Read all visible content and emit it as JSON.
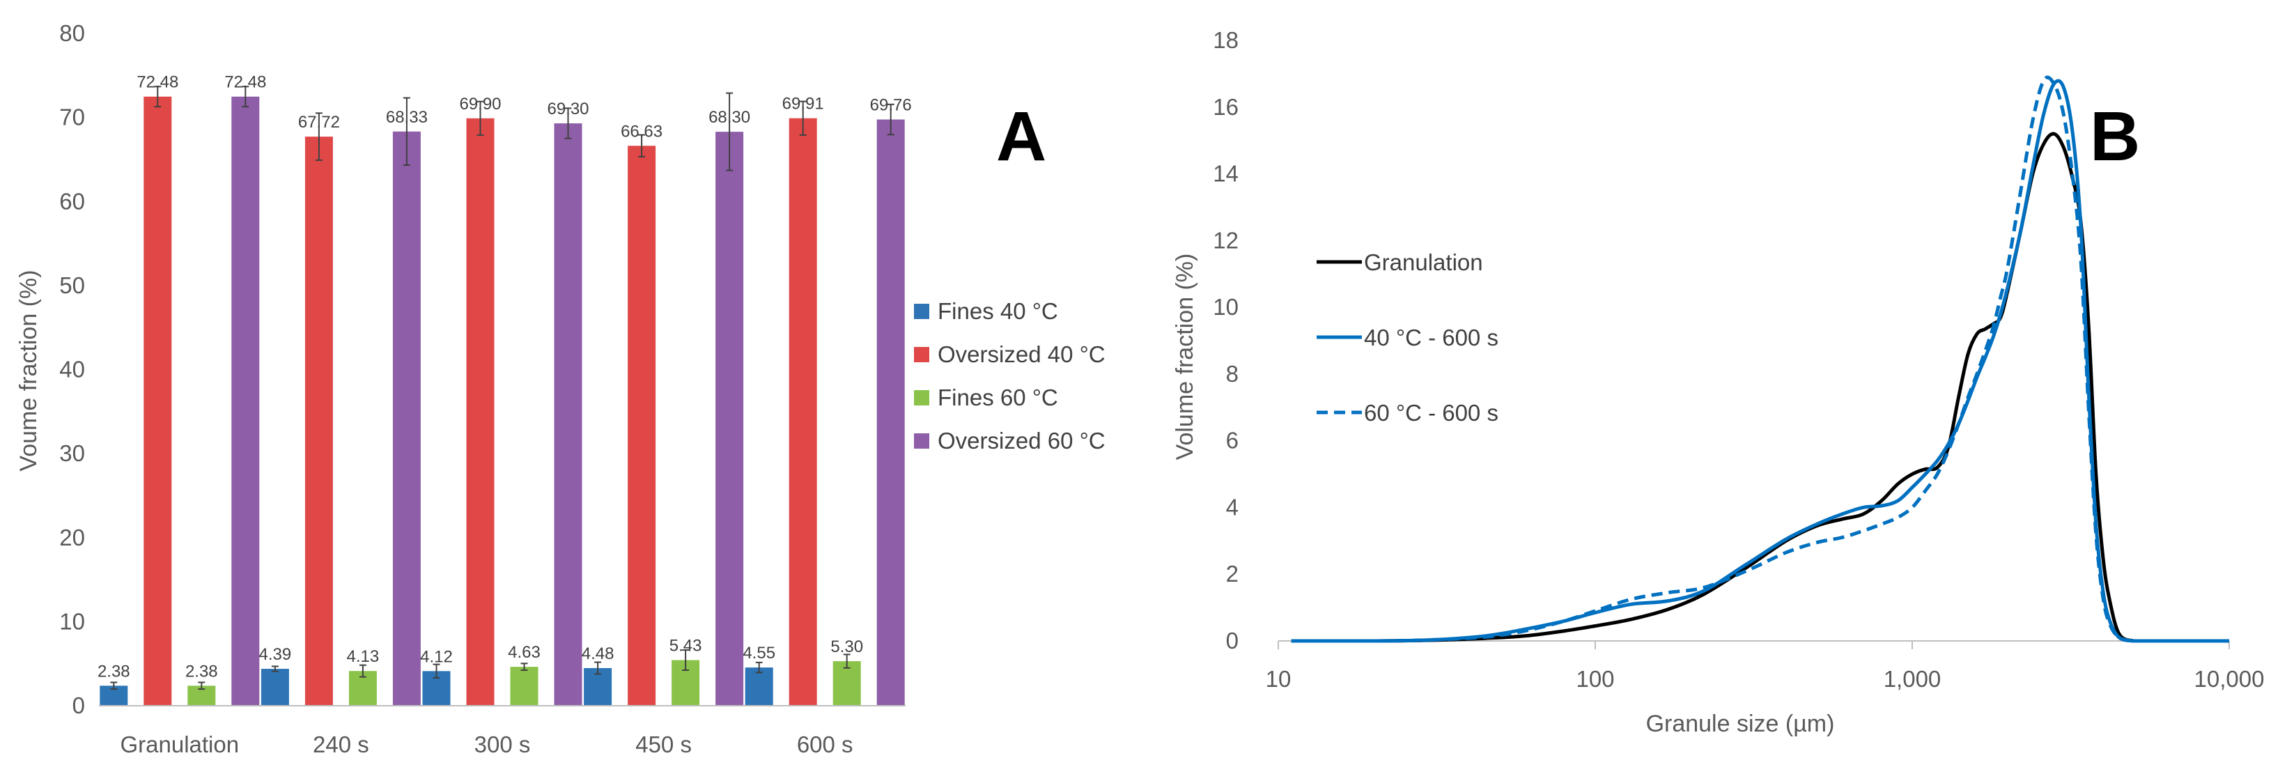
{
  "chart_data": [
    {
      "panel": "A",
      "type": "bar",
      "title": "",
      "xlabel": "",
      "ylabel": "Voume fraction (%)",
      "ylim": [
        0,
        80
      ],
      "yticks": [
        "0",
        "10",
        "20",
        "30",
        "40",
        "50",
        "60",
        "70",
        "80"
      ],
      "categories": [
        "Granulation",
        "240 s",
        "300 s",
        "450 s",
        "600 s"
      ],
      "series": [
        {
          "name": "Fines 40 °C",
          "color": "#2E75B6",
          "values": [
            2.38,
            4.39,
            4.12,
            4.48,
            4.55
          ],
          "labels": [
            "2.38",
            "4.39",
            "4.12",
            "4.48",
            "4.55"
          ],
          "errors": [
            0.4,
            0.3,
            0.8,
            0.7,
            0.6
          ]
        },
        {
          "name": "Oversized 40 °C",
          "color": "#E04848",
          "values": [
            72.48,
            67.72,
            69.9,
            66.63,
            69.91
          ],
          "labels": [
            "72.48",
            "67.72",
            "69.90",
            "66.63",
            "69.91"
          ],
          "errors": [
            1.2,
            2.8,
            2.0,
            1.3,
            2.0
          ]
        },
        {
          "name": "Fines 60 °C",
          "color": "#8BC34A",
          "values": [
            2.38,
            4.13,
            4.63,
            5.43,
            5.3
          ],
          "labels": [
            "2.38",
            "4.13",
            "4.63",
            "5.43",
            "5.30"
          ],
          "errors": [
            0.4,
            0.7,
            0.4,
            1.2,
            0.8
          ]
        },
        {
          "name": "Oversized 60 °C",
          "color": "#8E5EA8",
          "values": [
            72.48,
            68.33,
            69.3,
            68.3,
            69.76
          ],
          "labels": [
            "72.48",
            "68.33",
            "69.30",
            "68.30",
            "69.76"
          ],
          "errors": [
            1.2,
            4.0,
            1.8,
            4.6,
            1.8
          ]
        }
      ],
      "legend_position": "right"
    },
    {
      "panel": "B",
      "type": "line",
      "title": "",
      "xlabel": "Granule size (µm)",
      "ylabel": "Volume fraction (%)",
      "xscale": "log",
      "xlim": [
        10,
        10000
      ],
      "ylim": [
        0,
        18
      ],
      "xticks": [
        {
          "value": 10,
          "label": "10"
        },
        {
          "value": 100,
          "label": "100"
        },
        {
          "value": 1000,
          "label": "1,000"
        },
        {
          "value": 10000,
          "label": "10,000"
        }
      ],
      "yticks": [
        "0",
        "2",
        "4",
        "6",
        "8",
        "10",
        "12",
        "14",
        "16",
        "18"
      ],
      "series": [
        {
          "name": "Granulation",
          "color": "#000000",
          "dash": false,
          "x": [
            11,
            20,
            30,
            45,
            60,
            80,
            100,
            130,
            170,
            220,
            300,
            400,
            500,
            600,
            700,
            800,
            900,
            1000,
            1100,
            1200,
            1300,
            1400,
            1500,
            1600,
            1700,
            1800,
            1900,
            2000,
            2200,
            2400,
            2600,
            2800,
            3000,
            3200,
            3400,
            3600,
            3800,
            4000,
            4200,
            4500,
            5000,
            5500
          ],
          "y": [
            0,
            0,
            0.02,
            0.08,
            0.15,
            0.3,
            0.45,
            0.65,
            0.95,
            1.4,
            2.2,
            3.0,
            3.45,
            3.65,
            3.8,
            4.2,
            4.7,
            5.0,
            5.15,
            5.2,
            5.8,
            7.3,
            8.6,
            9.2,
            9.35,
            9.5,
            9.7,
            10.5,
            12.3,
            14.0,
            14.9,
            15.2,
            14.8,
            13.9,
            12.6,
            9.5,
            5.0,
            2.5,
            1.2,
            0.2,
            0,
            0
          ]
        },
        {
          "name": "40 °C - 600 s",
          "color": "#0070C0",
          "dash": false,
          "x": [
            11,
            20,
            30,
            45,
            60,
            80,
            100,
            130,
            170,
            220,
            300,
            400,
            500,
            600,
            700,
            800,
            900,
            1000,
            1100,
            1200,
            1300,
            1400,
            1500,
            1600,
            1700,
            1800,
            1900,
            2000,
            2200,
            2400,
            2600,
            2800,
            3000,
            3200,
            3400,
            3600,
            3800,
            4000,
            4200,
            4500,
            5000,
            5500,
            10000
          ],
          "y": [
            0,
            0,
            0.03,
            0.15,
            0.35,
            0.6,
            0.85,
            1.1,
            1.2,
            1.5,
            2.3,
            3.05,
            3.5,
            3.8,
            4.0,
            4.05,
            4.2,
            4.6,
            5.0,
            5.4,
            5.9,
            6.5,
            7.2,
            7.9,
            8.5,
            9.1,
            9.8,
            10.6,
            12.3,
            14.2,
            15.8,
            16.7,
            16.6,
            15.3,
            12.5,
            7.5,
            3.5,
            1.5,
            0.6,
            0.1,
            0,
            0,
            0
          ]
        },
        {
          "name": "60 °C - 600 s",
          "color": "#0070C0",
          "dash": true,
          "x": [
            11,
            20,
            30,
            45,
            60,
            80,
            100,
            130,
            170,
            220,
            300,
            400,
            500,
            600,
            700,
            800,
            900,
            1000,
            1100,
            1200,
            1300,
            1400,
            1500,
            1600,
            1700,
            1800,
            1900,
            2000,
            2200,
            2400,
            2600,
            2800,
            3000,
            3200,
            3400,
            3600,
            3800,
            4000,
            4200,
            4500,
            5000,
            5500
          ],
          "y": [
            0,
            0,
            0.03,
            0.12,
            0.3,
            0.6,
            0.9,
            1.25,
            1.45,
            1.6,
            2.1,
            2.65,
            2.95,
            3.1,
            3.3,
            3.5,
            3.7,
            4.0,
            4.5,
            5.0,
            5.7,
            6.5,
            7.3,
            8.0,
            8.7,
            9.4,
            10.3,
            11.2,
            13.5,
            15.6,
            16.8,
            16.7,
            15.8,
            14.0,
            11.5,
            7.0,
            3.2,
            1.3,
            0.5,
            0.1,
            0,
            0
          ]
        }
      ],
      "legend_position": "left"
    }
  ],
  "panel_labels": {
    "a": "A",
    "b": "B"
  }
}
